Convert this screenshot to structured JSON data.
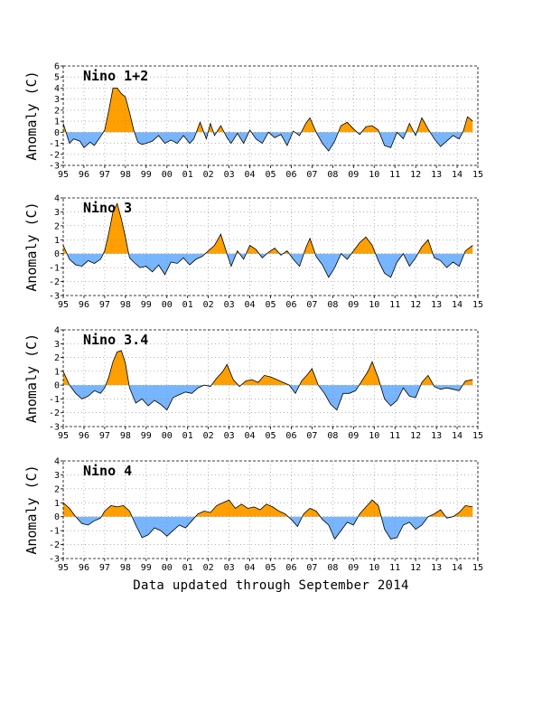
{
  "footer": "Data updated through September 2014",
  "colors": {
    "positive": "#ff9f00",
    "negative": "#77b5ff",
    "line": "#000000",
    "grid": "#888888"
  },
  "chart_data": [
    {
      "type": "area",
      "title": "Nino 1+2",
      "ylabel": "Anomaly (C)",
      "xlabel": "",
      "x_tick_labels": [
        "95",
        "96",
        "97",
        "98",
        "99",
        "00",
        "01",
        "02",
        "03",
        "04",
        "05",
        "06",
        "07",
        "08",
        "09",
        "10",
        "11",
        "12",
        "13",
        "14",
        "15"
      ],
      "y_ticks": [
        -3,
        -2,
        -1,
        0,
        1,
        2,
        3,
        4,
        5,
        6
      ],
      "xlim": [
        1995,
        2015
      ],
      "ylim": [
        -3,
        6
      ],
      "grid": true,
      "series": [
        {
          "x": [
            1995.0,
            1995.3,
            1995.5,
            1995.8,
            1996.0,
            1996.3,
            1996.5,
            1996.8,
            1997.0,
            1997.2,
            1997.4,
            1997.6,
            1997.8,
            1998.0,
            1998.2,
            1998.4,
            1998.6,
            1998.8,
            1999.0,
            1999.3,
            1999.6,
            1999.9,
            2000.2,
            2000.5,
            2000.8,
            2001.1,
            2001.3,
            2001.6,
            2001.9,
            2002.1,
            2002.3,
            2002.6,
            2002.9,
            2003.1,
            2003.4,
            2003.7,
            2004.0,
            2004.3,
            2004.6,
            2004.9,
            2005.2,
            2005.5,
            2005.8,
            2006.1,
            2006.4,
            2006.7,
            2006.9,
            2007.2,
            2007.5,
            2007.8,
            2008.1,
            2008.4,
            2008.7,
            2009.0,
            2009.3,
            2009.6,
            2009.9,
            2010.2,
            2010.5,
            2010.8,
            2011.1,
            2011.4,
            2011.7,
            2012.0,
            2012.3,
            2012.6,
            2012.9,
            2013.2,
            2013.5,
            2013.8,
            2014.1,
            2014.3,
            2014.5,
            2014.75
          ],
          "y": [
            0.8,
            -1.0,
            -0.6,
            -0.8,
            -1.4,
            -0.9,
            -1.2,
            -0.4,
            0.2,
            2.0,
            4.0,
            4.0,
            3.5,
            3.2,
            1.8,
            0.2,
            -0.9,
            -1.1,
            -1.0,
            -0.8,
            -0.3,
            -1.0,
            -0.7,
            -1.0,
            -0.3,
            -1.0,
            -0.6,
            0.9,
            -0.6,
            0.8,
            -0.3,
            0.6,
            -0.5,
            -1.0,
            -0.1,
            -1.0,
            0.2,
            -0.6,
            -1.0,
            0.0,
            -0.5,
            -0.2,
            -1.2,
            0.1,
            -0.3,
            0.8,
            1.3,
            0.0,
            -1.0,
            -1.7,
            -0.8,
            0.6,
            0.9,
            0.3,
            -0.2,
            0.5,
            0.6,
            0.2,
            -1.2,
            -1.4,
            0.0,
            -0.6,
            0.8,
            -0.3,
            1.3,
            0.3,
            -0.6,
            -1.3,
            -0.8,
            -0.3,
            -0.6,
            0.1,
            1.4,
            1.0
          ]
        }
      ]
    },
    {
      "type": "area",
      "title": "Nino 3",
      "ylabel": "Anomaly (C)",
      "xlabel": "",
      "x_tick_labels": [
        "95",
        "96",
        "97",
        "98",
        "99",
        "00",
        "01",
        "02",
        "03",
        "04",
        "05",
        "06",
        "07",
        "08",
        "09",
        "10",
        "11",
        "12",
        "13",
        "14",
        "15"
      ],
      "y_ticks": [
        -3,
        -2,
        -1,
        0,
        1,
        2,
        3,
        4
      ],
      "xlim": [
        1995,
        2015
      ],
      "ylim": [
        -3,
        4
      ],
      "grid": true,
      "series": [
        {
          "x": [
            1995.0,
            1995.3,
            1995.6,
            1995.9,
            1996.2,
            1996.5,
            1996.8,
            1997.0,
            1997.2,
            1997.4,
            1997.6,
            1997.8,
            1998.0,
            1998.2,
            1998.4,
            1998.7,
            1999.0,
            1999.3,
            1999.6,
            1999.9,
            2000.2,
            2000.5,
            2000.8,
            2001.1,
            2001.4,
            2001.7,
            2002.0,
            2002.3,
            2002.6,
            2002.9,
            2003.1,
            2003.4,
            2003.7,
            2004.0,
            2004.3,
            2004.6,
            2004.9,
            2005.2,
            2005.5,
            2005.8,
            2006.1,
            2006.4,
            2006.7,
            2006.9,
            2007.2,
            2007.5,
            2007.8,
            2008.1,
            2008.4,
            2008.7,
            2009.0,
            2009.3,
            2009.6,
            2009.9,
            2010.2,
            2010.5,
            2010.8,
            2011.1,
            2011.4,
            2011.7,
            2012.0,
            2012.3,
            2012.6,
            2012.9,
            2013.2,
            2013.5,
            2013.8,
            2014.1,
            2014.4,
            2014.75
          ],
          "y": [
            0.6,
            -0.4,
            -0.8,
            -0.9,
            -0.5,
            -0.7,
            -0.4,
            0.2,
            1.5,
            3.0,
            3.6,
            2.5,
            1.2,
            -0.3,
            -0.6,
            -1.0,
            -0.9,
            -1.3,
            -0.8,
            -1.5,
            -0.6,
            -0.7,
            -0.3,
            -0.8,
            -0.4,
            -0.2,
            0.2,
            0.6,
            1.4,
            0.0,
            -0.9,
            0.2,
            -0.4,
            0.6,
            0.3,
            -0.3,
            0.1,
            0.4,
            -0.1,
            0.2,
            -0.4,
            -0.9,
            0.4,
            1.1,
            -0.2,
            -0.8,
            -1.7,
            -1.0,
            0.0,
            -0.4,
            0.2,
            0.8,
            1.2,
            0.6,
            -0.5,
            -1.4,
            -1.7,
            -0.6,
            0.0,
            -0.9,
            -0.3,
            0.5,
            1.0,
            -0.3,
            -0.5,
            -1.0,
            -0.6,
            -0.9,
            0.2,
            0.6
          ]
        }
      ]
    },
    {
      "type": "area",
      "title": "Nino 3.4",
      "ylabel": "Anomaly (C)",
      "xlabel": "",
      "x_tick_labels": [
        "95",
        "96",
        "97",
        "98",
        "99",
        "00",
        "01",
        "02",
        "03",
        "04",
        "05",
        "06",
        "07",
        "08",
        "09",
        "10",
        "11",
        "12",
        "13",
        "14",
        "15"
      ],
      "y_ticks": [
        -3,
        -2,
        -1,
        0,
        1,
        2,
        3,
        4
      ],
      "xlim": [
        1995,
        2015
      ],
      "ylim": [
        -3,
        4
      ],
      "grid": true,
      "series": [
        {
          "x": [
            1995.0,
            1995.3,
            1995.6,
            1995.9,
            1996.2,
            1996.5,
            1996.8,
            1997.0,
            1997.2,
            1997.4,
            1997.6,
            1997.8,
            1998.0,
            1998.2,
            1998.5,
            1998.8,
            1999.1,
            1999.4,
            1999.7,
            2000.0,
            2000.3,
            2000.6,
            2000.9,
            2001.2,
            2001.5,
            2001.8,
            2002.1,
            2002.4,
            2002.7,
            2002.9,
            2003.2,
            2003.5,
            2003.8,
            2004.1,
            2004.4,
            2004.7,
            2005.0,
            2005.3,
            2005.6,
            2005.9,
            2006.2,
            2006.5,
            2006.8,
            2007.0,
            2007.3,
            2007.6,
            2007.9,
            2008.2,
            2008.5,
            2008.8,
            2009.1,
            2009.4,
            2009.7,
            2009.9,
            2010.2,
            2010.5,
            2010.8,
            2011.1,
            2011.4,
            2011.7,
            2012.0,
            2012.3,
            2012.6,
            2012.9,
            2013.2,
            2013.5,
            2013.8,
            2014.1,
            2014.4,
            2014.75
          ],
          "y": [
            1.0,
            0.0,
            -0.6,
            -1.0,
            -0.8,
            -0.4,
            -0.6,
            -0.2,
            0.6,
            1.7,
            2.4,
            2.5,
            1.6,
            -0.2,
            -1.3,
            -1.0,
            -1.5,
            -1.1,
            -1.4,
            -1.8,
            -0.9,
            -0.7,
            -0.5,
            -0.6,
            -0.2,
            0.0,
            -0.1,
            0.5,
            1.0,
            1.5,
            0.4,
            -0.1,
            0.3,
            0.4,
            0.2,
            0.7,
            0.6,
            0.4,
            0.2,
            0.0,
            -0.6,
            0.3,
            0.8,
            1.2,
            0.0,
            -0.6,
            -1.4,
            -1.8,
            -0.6,
            -0.6,
            -0.4,
            0.3,
            1.0,
            1.7,
            0.5,
            -1.0,
            -1.5,
            -1.1,
            -0.2,
            -0.8,
            -0.9,
            0.2,
            0.7,
            -0.1,
            -0.3,
            -0.2,
            -0.3,
            -0.4,
            0.3,
            0.4
          ]
        }
      ]
    },
    {
      "type": "area",
      "title": "Nino 4",
      "ylabel": "Anomaly (C)",
      "xlabel": "",
      "x_tick_labels": [
        "95",
        "96",
        "97",
        "98",
        "99",
        "00",
        "01",
        "02",
        "03",
        "04",
        "05",
        "06",
        "07",
        "08",
        "09",
        "10",
        "11",
        "12",
        "13",
        "14",
        "15"
      ],
      "y_ticks": [
        -3,
        -2,
        -1,
        0,
        1,
        2,
        3,
        4
      ],
      "xlim": [
        1995,
        2015
      ],
      "ylim": [
        -3,
        4
      ],
      "grid": true,
      "series": [
        {
          "x": [
            1995.0,
            1995.3,
            1995.6,
            1995.9,
            1996.2,
            1996.5,
            1996.8,
            1997.0,
            1997.3,
            1997.6,
            1997.9,
            1998.2,
            1998.5,
            1998.8,
            1999.1,
            1999.4,
            1999.7,
            2000.0,
            2000.3,
            2000.6,
            2000.9,
            2001.2,
            2001.5,
            2001.8,
            2002.1,
            2002.4,
            2002.7,
            2003.0,
            2003.3,
            2003.6,
            2003.9,
            2004.2,
            2004.5,
            2004.8,
            2005.1,
            2005.4,
            2005.7,
            2006.0,
            2006.3,
            2006.6,
            2006.9,
            2007.2,
            2007.5,
            2007.8,
            2008.1,
            2008.4,
            2008.7,
            2009.0,
            2009.3,
            2009.6,
            2009.9,
            2010.2,
            2010.5,
            2010.8,
            2011.1,
            2011.4,
            2011.7,
            2012.0,
            2012.3,
            2012.6,
            2012.9,
            2013.2,
            2013.5,
            2013.8,
            2014.1,
            2014.4,
            2014.75
          ],
          "y": [
            1.0,
            0.6,
            0.0,
            -0.5,
            -0.6,
            -0.3,
            -0.1,
            0.4,
            0.8,
            0.7,
            0.8,
            0.4,
            -0.6,
            -1.5,
            -1.3,
            -0.8,
            -1.0,
            -1.4,
            -1.0,
            -0.6,
            -0.8,
            -0.3,
            0.2,
            0.4,
            0.3,
            0.8,
            1.0,
            1.2,
            0.6,
            0.9,
            0.6,
            0.7,
            0.5,
            0.9,
            0.7,
            0.4,
            0.2,
            -0.2,
            -0.7,
            0.2,
            0.6,
            0.4,
            -0.2,
            -0.6,
            -1.6,
            -1.0,
            -0.4,
            -0.6,
            0.2,
            0.7,
            1.2,
            0.8,
            -0.9,
            -1.6,
            -1.5,
            -0.6,
            -0.4,
            -0.9,
            -0.6,
            0.0,
            0.2,
            0.5,
            -0.1,
            0.0,
            0.3,
            0.8,
            0.7
          ]
        }
      ]
    }
  ]
}
